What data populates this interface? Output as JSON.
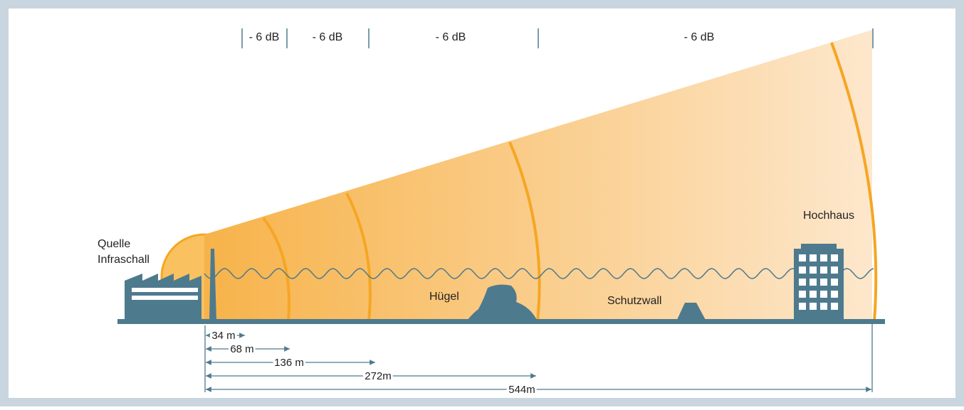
{
  "db_labels": [
    "- 6 dB",
    "- 6 dB",
    "- 6 dB",
    "- 6 dB"
  ],
  "source": {
    "line1": "Quelle",
    "line2": "Infraschall"
  },
  "objects": {
    "hill": "Hügel",
    "wall": "Schutzwall",
    "highrise": "Hochhaus"
  },
  "distances": [
    "34 m",
    "68 m",
    "136 m",
    "272m",
    "544m"
  ]
}
